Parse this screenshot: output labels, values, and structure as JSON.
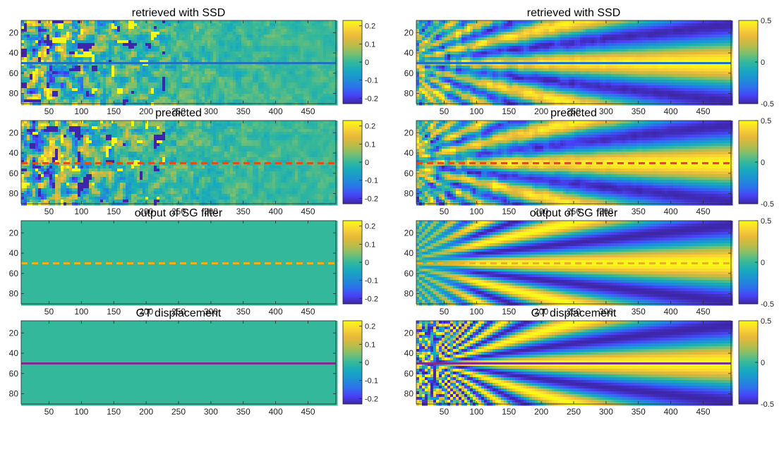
{
  "colormap": [
    "#3e26a8",
    "#4743f8",
    "#2c73eb",
    "#1d92d3",
    "#17a9be",
    "#34b89b",
    "#7bbf6e",
    "#bbbc4a",
    "#e7b83a",
    "#fad434",
    "#f9fb15"
  ],
  "chart_data": [
    {
      "type": "heatmap",
      "title": "retrieved with SSD",
      "field": "noisy",
      "x_ticks": [
        50,
        100,
        150,
        200,
        250,
        300,
        350,
        400,
        450
      ],
      "y_ticks": [
        20,
        40,
        60,
        80
      ],
      "xlim": [
        7,
        493
      ],
      "ylim": [
        8,
        90
      ],
      "clim": [
        -0.23,
        0.23
      ],
      "colorbar_ticks": [
        {
          "value": 0.2,
          "label": "0.2"
        },
        {
          "value": 0.1,
          "label": "0.1"
        },
        {
          "value": 0,
          "label": "0"
        },
        {
          "value": -0.1,
          "label": "-0.1"
        },
        {
          "value": -0.2,
          "label": "-0.2"
        }
      ],
      "line": {
        "y": 50,
        "style": "solid",
        "color": "#2073b9"
      }
    },
    {
      "type": "heatmap",
      "title": "retrieved with SSD",
      "field": "fan-noisy",
      "x_ticks": [
        50,
        100,
        150,
        200,
        250,
        300,
        350,
        400,
        450
      ],
      "y_ticks": [
        20,
        40,
        60,
        80
      ],
      "xlim": [
        7,
        493
      ],
      "ylim": [
        8,
        90
      ],
      "clim": [
        -0.5,
        0.5
      ],
      "colorbar_ticks": [
        {
          "value": 0.5,
          "label": "0.5"
        },
        {
          "value": 0,
          "label": "0"
        },
        {
          "value": -0.5,
          "label": "-0.5"
        }
      ],
      "line": {
        "y": 50,
        "style": "solid",
        "color": "#2073b9"
      }
    },
    {
      "type": "heatmap",
      "title": "predicted",
      "field": "noisy",
      "x_ticks": [
        50,
        100,
        150,
        200,
        250,
        300,
        350,
        400,
        450
      ],
      "y_ticks": [
        20,
        40,
        60,
        80
      ],
      "xlim": [
        7,
        493
      ],
      "ylim": [
        8,
        90
      ],
      "clim": [
        -0.23,
        0.23
      ],
      "colorbar_ticks": [
        {
          "value": 0.2,
          "label": "0.2"
        },
        {
          "value": 0.1,
          "label": "0.1"
        },
        {
          "value": 0,
          "label": "0"
        },
        {
          "value": -0.1,
          "label": "-0.1"
        },
        {
          "value": -0.2,
          "label": "-0.2"
        }
      ],
      "line": {
        "y": 50,
        "style": "dashed",
        "color": "#d95319"
      }
    },
    {
      "type": "heatmap",
      "title": "predicted",
      "field": "fan-noisy",
      "x_ticks": [
        50,
        100,
        150,
        200,
        250,
        300,
        350,
        400,
        450
      ],
      "y_ticks": [
        20,
        40,
        60,
        80
      ],
      "xlim": [
        7,
        493
      ],
      "ylim": [
        8,
        90
      ],
      "clim": [
        -0.5,
        0.5
      ],
      "colorbar_ticks": [
        {
          "value": 0.5,
          "label": "0.5"
        },
        {
          "value": 0,
          "label": "0"
        },
        {
          "value": -0.5,
          "label": "-0.5"
        }
      ],
      "line": {
        "y": 50,
        "style": "dashed",
        "color": "#d95319"
      }
    },
    {
      "type": "heatmap",
      "title": "output of SG filter",
      "field": "uniform",
      "x_ticks": [
        50,
        100,
        150,
        200,
        250,
        300,
        350,
        400,
        450
      ],
      "y_ticks": [
        20,
        40,
        60,
        80
      ],
      "xlim": [
        7,
        493
      ],
      "ylim": [
        8,
        90
      ],
      "clim": [
        -0.23,
        0.23
      ],
      "colorbar_ticks": [
        {
          "value": 0.2,
          "label": "0.2"
        },
        {
          "value": 0.1,
          "label": "0.1"
        },
        {
          "value": 0,
          "label": "0"
        },
        {
          "value": -0.1,
          "label": "-0.1"
        },
        {
          "value": -0.2,
          "label": "-0.2"
        }
      ],
      "line": {
        "y": 50,
        "style": "dashed",
        "color": "#edb120"
      }
    },
    {
      "type": "heatmap",
      "title": "output of SG filter",
      "field": "fan-smooth",
      "x_ticks": [
        50,
        100,
        150,
        200,
        250,
        300,
        350,
        400,
        450
      ],
      "y_ticks": [
        20,
        40,
        60,
        80
      ],
      "xlim": [
        7,
        493
      ],
      "ylim": [
        8,
        90
      ],
      "clim": [
        -0.5,
        0.5
      ],
      "colorbar_ticks": [
        {
          "value": 0.5,
          "label": "0.5"
        },
        {
          "value": 0,
          "label": "0"
        },
        {
          "value": -0.5,
          "label": "-0.5"
        }
      ],
      "line": {
        "y": 50,
        "style": "dashed",
        "color": "#edb120"
      }
    },
    {
      "type": "heatmap",
      "title": "GT displacement",
      "field": "uniform",
      "x_ticks": [
        50,
        100,
        150,
        200,
        250,
        300,
        350,
        400,
        450
      ],
      "y_ticks": [
        20,
        40,
        60,
        80
      ],
      "xlim": [
        7,
        493
      ],
      "ylim": [
        8,
        90
      ],
      "clim": [
        -0.23,
        0.23
      ],
      "colorbar_ticks": [
        {
          "value": 0.2,
          "label": "0.2"
        },
        {
          "value": 0.1,
          "label": "0.1"
        },
        {
          "value": 0,
          "label": "0"
        },
        {
          "value": -0.1,
          "label": "-0.1"
        },
        {
          "value": -0.2,
          "label": "-0.2"
        }
      ],
      "line": {
        "y": 50,
        "style": "solid",
        "color": "#7e2f8e"
      }
    },
    {
      "type": "heatmap",
      "title": "GT displacement",
      "field": "fan-gt",
      "x_ticks": [
        50,
        100,
        150,
        200,
        250,
        300,
        350,
        400,
        450
      ],
      "y_ticks": [
        20,
        40,
        60,
        80
      ],
      "xlim": [
        7,
        493
      ],
      "ylim": [
        8,
        90
      ],
      "clim": [
        -0.5,
        0.5
      ],
      "colorbar_ticks": [
        {
          "value": 0.5,
          "label": "0.5"
        },
        {
          "value": 0,
          "label": "0"
        },
        {
          "value": -0.5,
          "label": "-0.5"
        }
      ],
      "line": {
        "y": 50,
        "style": "solid",
        "color": "#7e2f8e"
      }
    }
  ]
}
